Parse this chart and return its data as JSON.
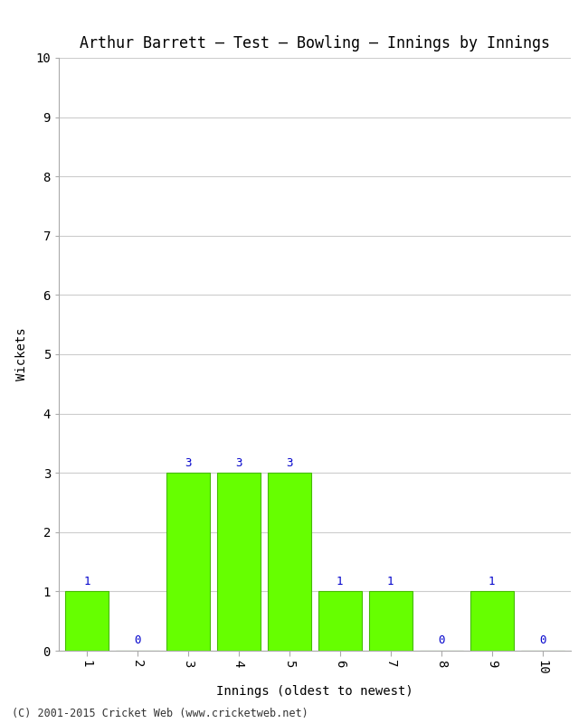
{
  "title": "Arthur Barrett – Test – Bowling – Innings by Innings",
  "xlabel": "Innings (oldest to newest)",
  "ylabel": "Wickets",
  "x_labels": [
    "1",
    "2",
    "3",
    "4",
    "5",
    "6",
    "7",
    "8",
    "9",
    "10"
  ],
  "x_positions": [
    1,
    2,
    3,
    4,
    5,
    6,
    7,
    8,
    9,
    10
  ],
  "values": [
    1,
    0,
    3,
    3,
    3,
    1,
    1,
    0,
    1,
    0
  ],
  "bar_color": "#66ff00",
  "bar_edge_color": "#44bb00",
  "annotation_color": "#0000cc",
  "ylim": [
    0,
    10
  ],
  "yticks": [
    0,
    1,
    2,
    3,
    4,
    5,
    6,
    7,
    8,
    9,
    10
  ],
  "background_color": "#ffffff",
  "grid_color": "#cccccc",
  "title_fontsize": 12,
  "axis_label_fontsize": 10,
  "tick_fontsize": 10,
  "annotation_fontsize": 9,
  "footer": "(C) 2001-2015 Cricket Web (www.cricketweb.net)"
}
